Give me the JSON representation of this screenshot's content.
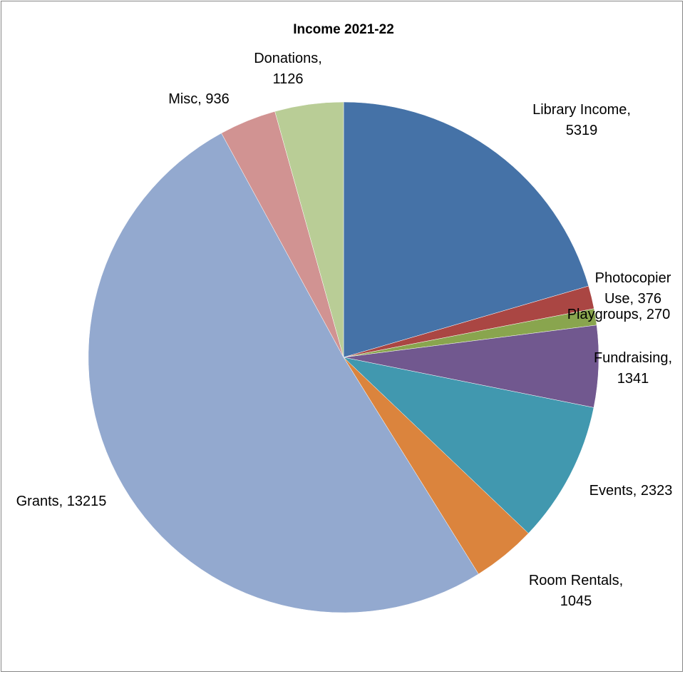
{
  "chart_data": {
    "type": "pie",
    "title": "Income 2021-22",
    "slices": [
      {
        "label": "Library Income",
        "value": 5319,
        "color": "#4572a7",
        "label_lines": [
          "Library Income,",
          "5319"
        ]
      },
      {
        "label": "Photocopier Use",
        "value": 376,
        "color": "#aa4643",
        "label_lines": [
          "Photocopier",
          "Use, 376"
        ]
      },
      {
        "label": "Playgroups",
        "value": 270,
        "color": "#89a54e",
        "label_lines": [
          "Playgroups, 270"
        ]
      },
      {
        "label": "Fundraising",
        "value": 1341,
        "color": "#71588f",
        "label_lines": [
          "Fundraising,",
          "1341"
        ]
      },
      {
        "label": "Events",
        "value": 2323,
        "color": "#4198af",
        "label_lines": [
          "Events, 2323"
        ]
      },
      {
        "label": "Room Rentals",
        "value": 1045,
        "color": "#db843d",
        "label_lines": [
          "Room Rentals,",
          "1045"
        ]
      },
      {
        "label": "Grants",
        "value": 13215,
        "color": "#93a9cf",
        "label_lines": [
          "Grants, 13215"
        ]
      },
      {
        "label": "Misc",
        "value": 936,
        "color": "#d19392",
        "label_lines": [
          "Misc, 936"
        ]
      },
      {
        "label": "Donations",
        "value": 1126,
        "color": "#b9cd96",
        "label_lines": [
          "Donations,",
          "1126"
        ]
      }
    ]
  }
}
